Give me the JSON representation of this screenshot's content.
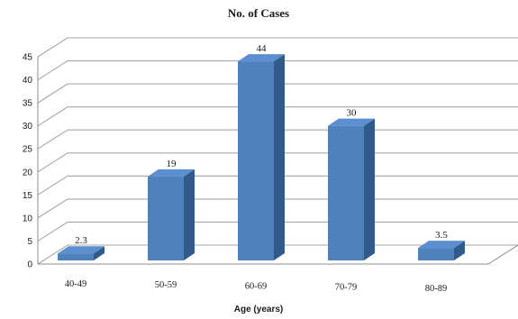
{
  "chart_data": {
    "type": "bar",
    "title": "No. of Cases",
    "xlabel": "Age (years)",
    "ylabel": "",
    "categories": [
      "40-49",
      "50-59",
      "60-69",
      "70-79",
      "80-89"
    ],
    "values": [
      2.3,
      19,
      44,
      30,
      3.5
    ],
    "value_labels": [
      "2.3",
      "19",
      "44",
      "30",
      "3.5"
    ],
    "ylim": [
      0,
      45
    ],
    "yticks": [
      0,
      5,
      10,
      15,
      20,
      25,
      30,
      35,
      40,
      45
    ],
    "grid": true,
    "legend": "none",
    "style": "3d-column",
    "colors": {
      "bar_front": "#4f81bd",
      "bar_side": "#2f5a8a",
      "bar_top": "#5b8fd0",
      "grid": "#a6a6a6",
      "axis": "#8c8c8c"
    }
  }
}
